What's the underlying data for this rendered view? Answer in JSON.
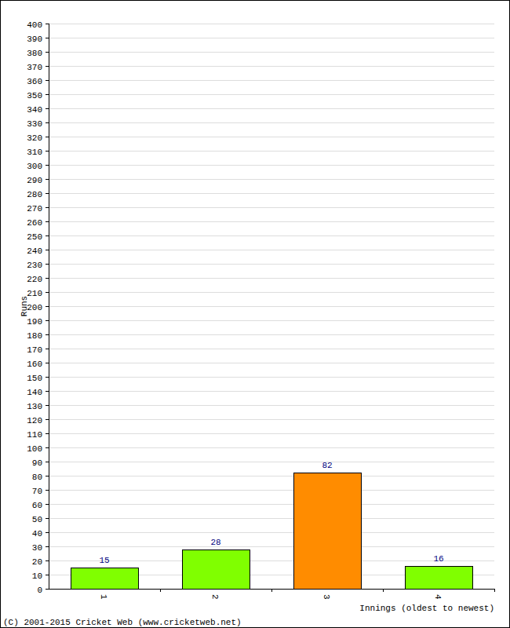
{
  "chart_data": {
    "type": "bar",
    "x_label": "Innings (oldest to newest)",
    "y_label": "Runs",
    "annotations": [
      "(C) 2001-2015 Cricket Web (www.cricketweb.net)"
    ],
    "categories": [
      "1",
      "2",
      "3",
      "4"
    ],
    "values": [
      15,
      28,
      82,
      16
    ],
    "colors": [
      "#80ff00",
      "#80ff00",
      "#ff8c00",
      "#80ff00"
    ],
    "ylim": [
      0,
      400
    ],
    "yticks": [
      0,
      10,
      20,
      30,
      40,
      50,
      60,
      70,
      80,
      90,
      100,
      110,
      120,
      130,
      140,
      150,
      160,
      170,
      180,
      190,
      200,
      210,
      220,
      230,
      240,
      250,
      260,
      270,
      280,
      290,
      300,
      310,
      320,
      330,
      340,
      350,
      360,
      370,
      380,
      390,
      400
    ],
    "grid": true,
    "data_labels": true
  }
}
